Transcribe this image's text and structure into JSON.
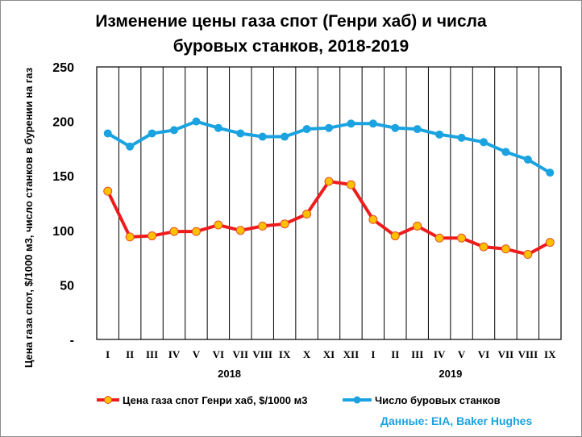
{
  "chart_data": {
    "type": "line",
    "title_line1": "Изменение цены газа спот (Генри хаб) и числа",
    "title_line2": "буровых станков, 2018-2019",
    "ylabel": "Цена газа спот, $/1000 м3, число станков в бурении на газ",
    "y_ticks": [
      "-",
      "50",
      "100",
      "150",
      "200",
      "250"
    ],
    "ylim": [
      0,
      250
    ],
    "grid": "vertical",
    "categories": [
      "I",
      "II",
      "III",
      "IV",
      "V",
      "VI",
      "VII",
      "VIII",
      "IX",
      "X",
      "XI",
      "XII",
      "I",
      "II",
      "III",
      "IV",
      "V",
      "VI",
      "VII",
      "VIII",
      "IX"
    ],
    "year_labels": [
      {
        "label": "2018",
        "center_index": 6
      },
      {
        "label": "2019",
        "center_index": 16
      }
    ],
    "series": [
      {
        "name": "Цена газа спот Генри хаб, $/1000 м3",
        "color": "#ee1c1c",
        "marker_color": "#ffc000",
        "values": [
          136,
          94,
          95,
          99,
          99,
          105,
          100,
          104,
          106,
          115,
          145,
          142,
          110,
          95,
          104,
          93,
          93,
          85,
          83,
          78,
          89
        ]
      },
      {
        "name": "Число буровых станков",
        "color": "#1aa3e0",
        "marker_color": "#1aa3e0",
        "values": [
          189,
          177,
          189,
          192,
          200,
          194,
          189,
          186,
          186,
          193,
          194,
          198,
          198,
          194,
          193,
          188,
          185,
          181,
          172,
          165,
          153
        ]
      }
    ],
    "legend_position": "bottom",
    "source": "Данные: EIA, Baker Hughes"
  }
}
